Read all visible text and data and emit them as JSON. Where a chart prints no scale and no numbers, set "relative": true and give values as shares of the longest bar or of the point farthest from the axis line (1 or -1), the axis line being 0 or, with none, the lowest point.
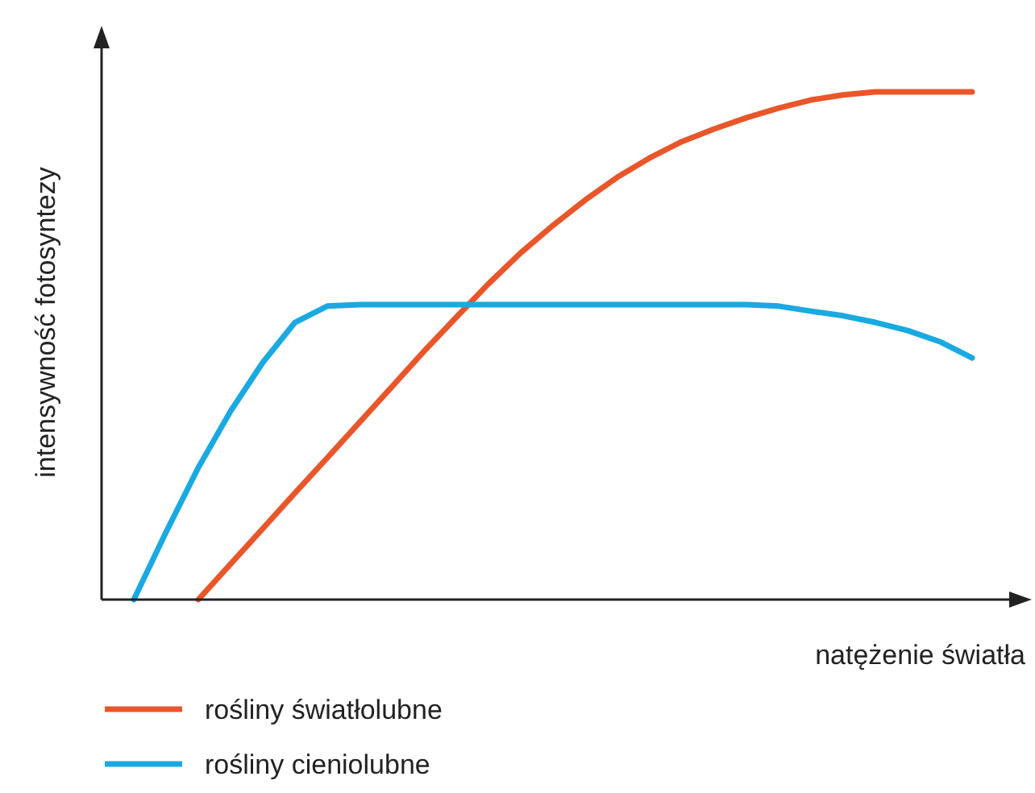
{
  "chart_data": {
    "type": "line",
    "relative": true,
    "xlabel": "natężenie światła",
    "ylabel": "intensywność fotosyntezy",
    "categories": [
      null,
      null,
      null,
      null,
      null,
      null,
      null,
      null,
      null,
      null,
      null,
      null,
      null,
      null,
      null,
      null,
      null,
      null,
      null,
      null,
      null,
      null,
      null,
      null,
      null,
      null,
      null
    ],
    "series": [
      {
        "name": "rośliny światłolubne",
        "color": "#e8562a",
        "values": [
          null,
          null,
          0,
          0.07,
          0.14,
          0.21,
          0.279,
          0.349,
          0.419,
          0.489,
          0.556,
          0.622,
          0.683,
          0.737,
          0.787,
          0.832,
          0.87,
          0.902,
          0.927,
          0.949,
          0.968,
          0.984,
          0.994,
          1,
          1,
          1,
          1
        ]
      },
      {
        "name": "rośliny cieniolubne",
        "color": "#1aa9e0",
        "values": [
          0,
          0.133,
          0.26,
          0.371,
          0.467,
          0.546,
          0.578,
          0.581,
          0.581,
          0.581,
          0.581,
          0.581,
          0.581,
          0.581,
          0.581,
          0.581,
          0.581,
          0.581,
          0.581,
          0.581,
          0.578,
          0.568,
          0.559,
          0.546,
          0.53,
          0.508,
          0.476
        ]
      }
    ],
    "legend": "bottom left",
    "marker": "none",
    "line_style": "solid"
  }
}
